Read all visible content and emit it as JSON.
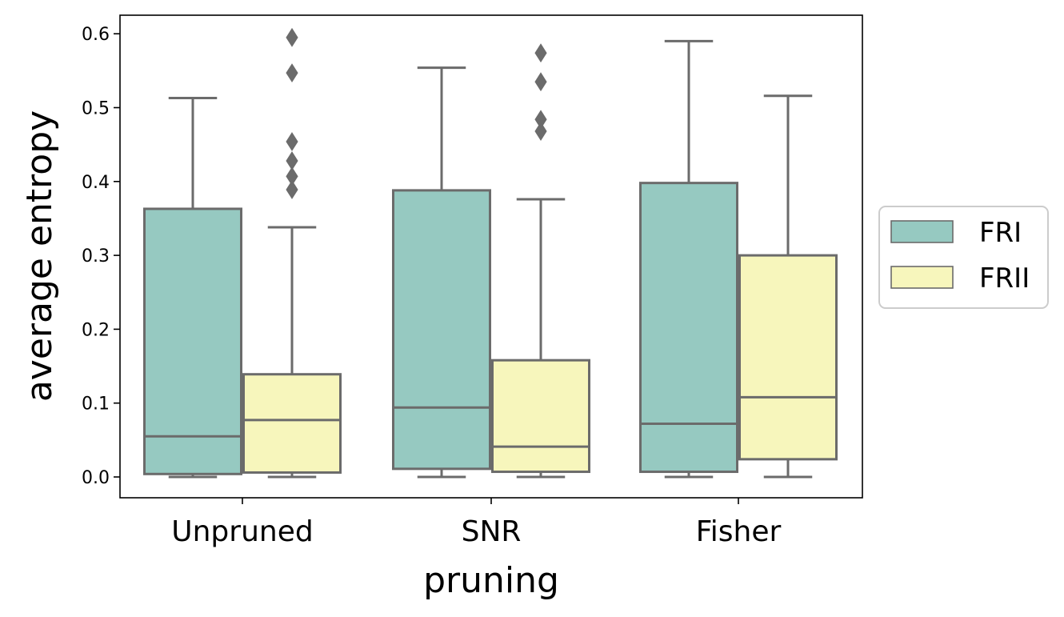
{
  "chart_data": {
    "type": "boxplot",
    "title": "",
    "xlabel": "pruning",
    "ylabel": "average entropy",
    "categories": [
      "Unpruned",
      "SNR",
      "Fisher"
    ],
    "ylim": [
      -0.03,
      0.625
    ],
    "yticks": [
      0.0,
      0.1,
      0.2,
      0.3,
      0.4,
      0.5,
      0.6
    ],
    "ytick_labels": [
      "0.0",
      "0.1",
      "0.2",
      "0.3",
      "0.4",
      "0.5",
      "0.6"
    ],
    "grid": false,
    "legend_position": "center-right outside",
    "series": [
      {
        "name": "FRI",
        "color": "#96c9c1",
        "boxes": [
          {
            "category": "Unpruned",
            "whisker_low": 0.0,
            "q1": 0.004,
            "median": 0.055,
            "q3": 0.363,
            "whisker_high": 0.513,
            "outliers": []
          },
          {
            "category": "SNR",
            "whisker_low": 0.0,
            "q1": 0.011,
            "median": 0.094,
            "q3": 0.388,
            "whisker_high": 0.554,
            "outliers": []
          },
          {
            "category": "Fisher",
            "whisker_low": 0.0,
            "q1": 0.007,
            "median": 0.072,
            "q3": 0.398,
            "whisker_high": 0.59,
            "outliers": []
          }
        ]
      },
      {
        "name": "FRII",
        "color": "#f7f6bc",
        "boxes": [
          {
            "category": "Unpruned",
            "whisker_low": 0.0,
            "q1": 0.006,
            "median": 0.077,
            "q3": 0.139,
            "whisker_high": 0.338,
            "outliers": [
              0.389,
              0.407,
              0.428,
              0.454,
              0.547,
              0.595
            ]
          },
          {
            "category": "SNR",
            "whisker_low": 0.0,
            "q1": 0.007,
            "median": 0.041,
            "q3": 0.158,
            "whisker_high": 0.376,
            "outliers": [
              0.468,
              0.484,
              0.535,
              0.574
            ]
          },
          {
            "category": "Fisher",
            "whisker_low": 0.0,
            "q1": 0.024,
            "median": 0.108,
            "q3": 0.3,
            "whisker_high": 0.516,
            "outliers": []
          }
        ]
      }
    ]
  },
  "style": {
    "edge_color": "#6b6b6b",
    "axis_color": "#000000",
    "text_color": "#000000"
  }
}
